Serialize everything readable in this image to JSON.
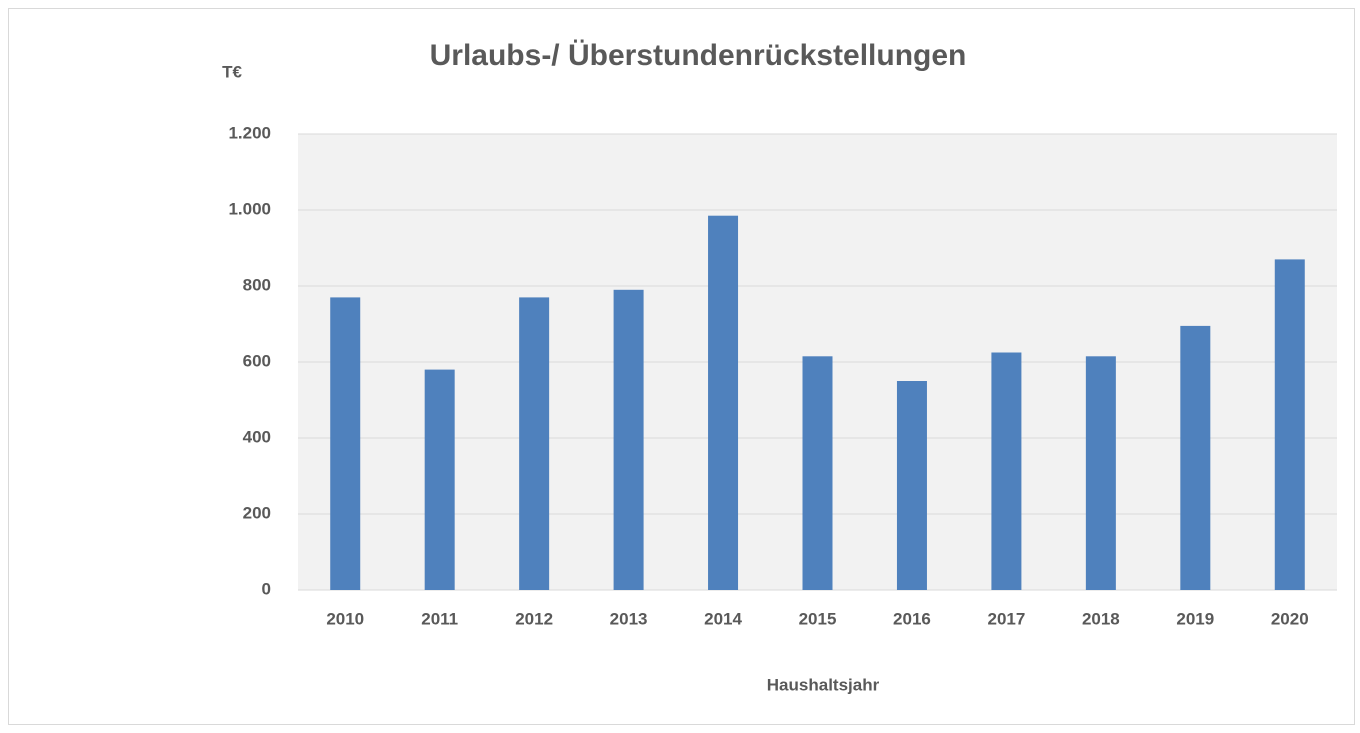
{
  "chart_data": {
    "type": "bar",
    "title": "Urlaubs-/ Überstundenrückstellungen",
    "y_label": "T€",
    "x_label": "Haushaltsjahr",
    "categories": [
      "2010",
      "2011",
      "2012",
      "2013",
      "2014",
      "2015",
      "2016",
      "2017",
      "2018",
      "2019",
      "2020"
    ],
    "values": [
      770,
      580,
      770,
      790,
      985,
      615,
      550,
      625,
      615,
      695,
      870
    ],
    "color": "#4f81bd",
    "ylim": [
      0,
      1200
    ],
    "yticks": [
      0,
      200,
      400,
      600,
      800,
      {
        "value": 1000,
        "label": "1.000"
      },
      {
        "value": 1200,
        "label": "1.200"
      }
    ],
    "grid": true
  }
}
